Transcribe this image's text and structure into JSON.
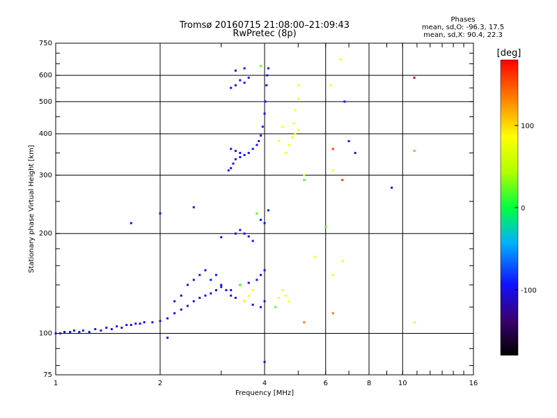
{
  "title": "Tromsø 20160715 21:08:00–21:09:43",
  "subtitle": "RwPretec (8p)",
  "phases": {
    "heading": "Phases",
    "line_o": "mean, sd,O: -96.3, 17.5",
    "line_x": "mean, sd,X: 90.4, 22.3"
  },
  "chart_data": {
    "type": "scatter",
    "xlabel": "Frequency [MHz]",
    "ylabel": "Stationary phase Virtual Height [km]",
    "x_scale": "log",
    "y_scale": "log",
    "xlim": [
      1,
      16
    ],
    "ylim": [
      75,
      750
    ],
    "x_ticks": [
      1,
      2,
      4,
      6,
      8,
      10,
      16
    ],
    "x_tick_labels": [
      "1",
      "2",
      "4",
      "6",
      "8",
      "10",
      "16"
    ],
    "y_ticks": [
      75,
      100,
      200,
      300,
      400,
      500,
      600,
      750
    ],
    "y_tick_labels": [
      "75",
      "100",
      "200",
      "300",
      "400",
      "500",
      "600",
      "750"
    ],
    "grid": true,
    "colorbar": {
      "label": "[deg]",
      "range": [
        -180,
        180
      ],
      "ticks": [
        100,
        0,
        -100
      ],
      "tick_labels": [
        "100",
        "0",
        "-100"
      ]
    },
    "series": [
      {
        "points": [
          [
            1.0,
            100,
            -100
          ],
          [
            1.03,
            100,
            -100
          ],
          [
            1.06,
            101,
            -100
          ],
          [
            1.1,
            101,
            -100
          ],
          [
            1.13,
            102,
            -100
          ],
          [
            1.17,
            101,
            -100
          ],
          [
            1.2,
            102,
            -100
          ],
          [
            1.25,
            101,
            -100
          ],
          [
            1.3,
            103,
            -100
          ],
          [
            1.35,
            102,
            -100
          ],
          [
            1.4,
            104,
            -100
          ],
          [
            1.45,
            103,
            -100
          ],
          [
            1.5,
            105,
            -100
          ],
          [
            1.55,
            104,
            -100
          ],
          [
            1.6,
            106,
            -100
          ],
          [
            1.65,
            106,
            -100
          ],
          [
            1.7,
            107,
            -100
          ],
          [
            1.75,
            107,
            -100
          ],
          [
            1.8,
            108,
            -100
          ],
          [
            1.9,
            108,
            -100
          ],
          [
            2.0,
            109,
            -100
          ],
          [
            2.1,
            111,
            -100
          ],
          [
            2.2,
            115,
            -100
          ],
          [
            2.3,
            118,
            -100
          ],
          [
            2.4,
            121,
            -100
          ],
          [
            2.5,
            125,
            -100
          ],
          [
            2.6,
            128,
            -100
          ],
          [
            2.7,
            130,
            -100
          ],
          [
            2.8,
            132,
            -100
          ],
          [
            2.9,
            135,
            -100
          ],
          [
            3.0,
            138,
            -100
          ],
          [
            3.2,
            135,
            -100
          ],
          [
            3.4,
            140,
            -100
          ],
          [
            3.6,
            142,
            -100
          ],
          [
            3.8,
            145,
            -100
          ],
          [
            3.9,
            150,
            -100
          ],
          [
            4.0,
            155,
            -100
          ],
          [
            2.2,
            125,
            -100
          ],
          [
            2.3,
            130,
            -100
          ],
          [
            2.4,
            140,
            -100
          ],
          [
            2.5,
            145,
            -100
          ],
          [
            2.6,
            150,
            -100
          ],
          [
            2.7,
            155,
            -100
          ],
          [
            2.8,
            145,
            -100
          ],
          [
            2.9,
            150,
            -100
          ],
          [
            3.0,
            140,
            -100
          ],
          [
            3.1,
            135,
            -100
          ],
          [
            3.2,
            130,
            -100
          ],
          [
            3.3,
            128,
            -100
          ],
          [
            3.5,
            125,
            -100
          ],
          [
            3.7,
            122,
            -100
          ],
          [
            3.9,
            120,
            -100
          ],
          [
            4.0,
            125,
            -100
          ],
          [
            2.0,
            230,
            -100
          ],
          [
            2.5,
            240,
            -100
          ],
          [
            3.0,
            195,
            -100
          ],
          [
            3.3,
            200,
            -100
          ],
          [
            3.4,
            205,
            -100
          ],
          [
            3.5,
            200,
            -100
          ],
          [
            3.6,
            196,
            -100
          ],
          [
            3.7,
            190,
            -100
          ],
          [
            3.9,
            220,
            -100
          ],
          [
            4.0,
            215,
            -100
          ],
          [
            4.1,
            235,
            -100
          ],
          [
            3.15,
            310,
            -100
          ],
          [
            3.2,
            315,
            -100
          ],
          [
            3.25,
            325,
            -100
          ],
          [
            3.3,
            335,
            -100
          ],
          [
            3.4,
            340,
            -100
          ],
          [
            3.5,
            345,
            -100
          ],
          [
            3.6,
            350,
            -100
          ],
          [
            3.7,
            360,
            -100
          ],
          [
            3.8,
            370,
            -100
          ],
          [
            3.85,
            380,
            -100
          ],
          [
            3.9,
            395,
            -100
          ],
          [
            3.95,
            420,
            -100
          ],
          [
            4.0,
            460,
            -100
          ],
          [
            4.02,
            500,
            -100
          ],
          [
            4.05,
            560,
            -100
          ],
          [
            4.07,
            600,
            -100
          ],
          [
            4.1,
            630,
            -100
          ],
          [
            3.2,
            360,
            -100
          ],
          [
            3.3,
            355,
            -100
          ],
          [
            3.4,
            350,
            -100
          ],
          [
            3.2,
            550,
            -100
          ],
          [
            3.3,
            560,
            -100
          ],
          [
            3.4,
            580,
            -100
          ],
          [
            3.5,
            570,
            -100
          ],
          [
            3.6,
            590,
            -100
          ],
          [
            3.3,
            620,
            -100
          ],
          [
            3.5,
            630,
            -100
          ],
          [
            7.0,
            380,
            -100
          ],
          [
            7.3,
            350,
            -100
          ],
          [
            9.3,
            275,
            -100
          ],
          [
            6.8,
            500,
            -100
          ],
          [
            4.0,
            82,
            -100
          ],
          [
            2.1,
            97,
            -100
          ],
          [
            1.65,
            215,
            -100
          ],
          [
            4.6,
            350,
            100
          ],
          [
            4.7,
            370,
            100
          ],
          [
            4.8,
            390,
            100
          ],
          [
            4.9,
            400,
            100
          ],
          [
            5.0,
            410,
            100
          ],
          [
            4.85,
            430,
            100
          ],
          [
            4.9,
            470,
            100
          ],
          [
            5.0,
            510,
            100
          ],
          [
            5.0,
            560,
            100
          ],
          [
            4.5,
            420,
            100
          ],
          [
            4.4,
            380,
            100
          ],
          [
            4.6,
            130,
            100
          ],
          [
            4.7,
            125,
            100
          ],
          [
            4.5,
            135,
            100
          ],
          [
            4.4,
            128,
            100
          ],
          [
            3.6,
            130,
            100
          ],
          [
            3.5,
            125,
            100
          ],
          [
            3.7,
            135,
            100
          ],
          [
            5.2,
            300,
            100
          ],
          [
            5.6,
            170,
            100
          ],
          [
            6.7,
            165,
            100
          ],
          [
            6.3,
            150,
            100
          ],
          [
            6.2,
            560,
            100
          ],
          [
            6.6,
            670,
            100
          ],
          [
            6.3,
            310,
            100
          ],
          [
            10.8,
            108,
            100
          ],
          [
            5.2,
            108,
            140
          ],
          [
            6.3,
            115,
            140
          ],
          [
            6.3,
            360,
            160
          ],
          [
            6.7,
            290,
            160
          ],
          [
            10.8,
            590,
            180
          ],
          [
            4.3,
            120,
            20
          ],
          [
            3.4,
            140,
            20
          ],
          [
            3.8,
            230,
            20
          ],
          [
            5.2,
            290,
            20
          ],
          [
            3.9,
            640,
            20
          ],
          [
            6.0,
            210,
            20
          ],
          [
            10.8,
            355,
            20
          ]
        ]
      }
    ]
  }
}
